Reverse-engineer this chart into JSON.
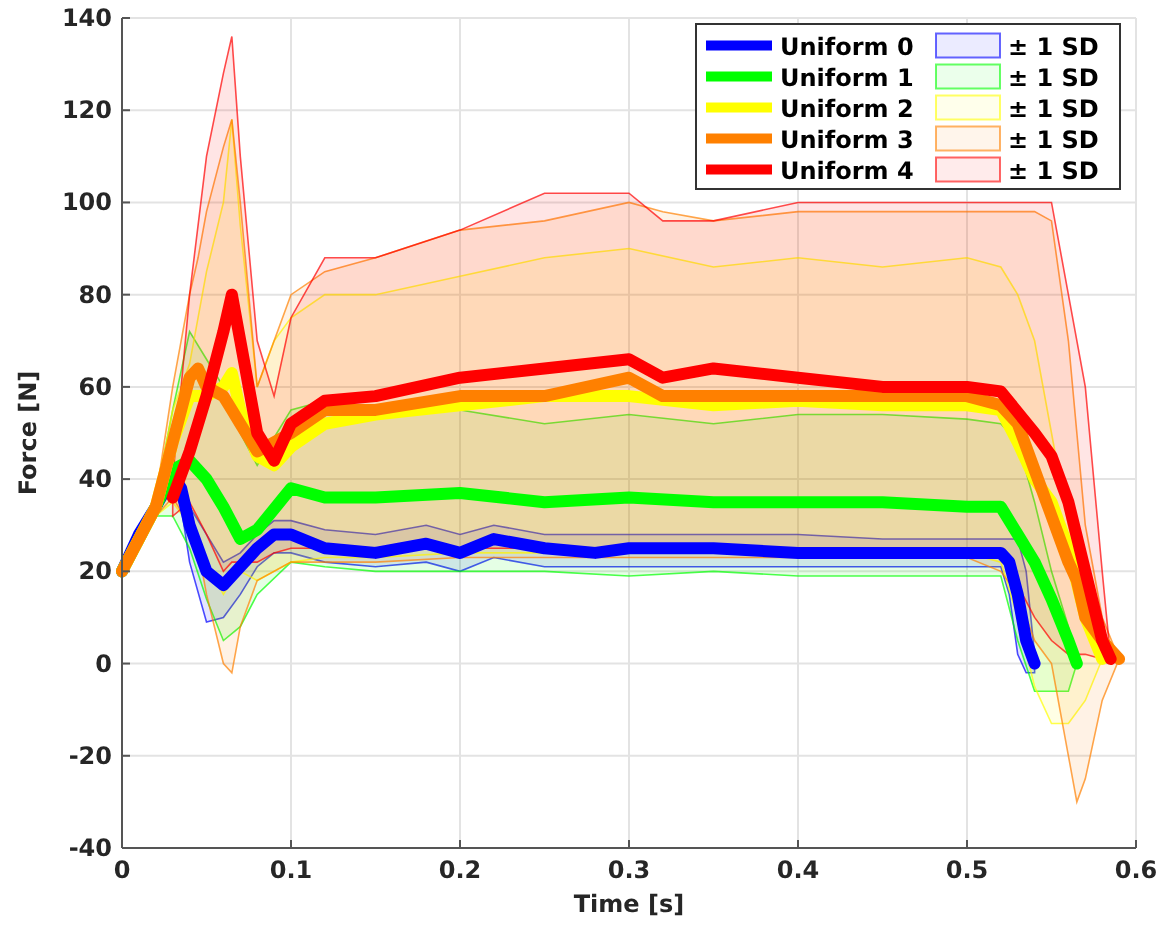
{
  "chart_data": {
    "type": "line",
    "xlabel": "Time [s]",
    "ylabel": "Force [N]",
    "xlim": [
      0,
      0.6
    ],
    "xticks": [
      0,
      0.1,
      0.2,
      0.3,
      0.4,
      0.5,
      0.6
    ],
    "ylim": [
      -40,
      140
    ],
    "yticks": [
      -40,
      -20,
      0,
      20,
      40,
      60,
      80,
      100,
      120,
      140
    ],
    "grid": true,
    "legend": "top right",
    "marker": "none",
    "line_style": "solid",
    "annotations": [
      "± 1 SD",
      "± 1 SD",
      "± 1 SD",
      "± 1 SD",
      "± 1 SD"
    ],
    "series": [
      {
        "name": "Uniform 0",
        "color": "#0000ff",
        "x": [
          0,
          0.01,
          0.02,
          0.03,
          0.035,
          0.04,
          0.05,
          0.06,
          0.07,
          0.08,
          0.09,
          0.1,
          0.12,
          0.15,
          0.18,
          0.2,
          0.22,
          0.25,
          0.28,
          0.3,
          0.35,
          0.4,
          0.45,
          0.5,
          0.52,
          0.525,
          0.53,
          0.535,
          0.54
        ],
        "values": [
          20,
          28,
          34,
          41,
          38,
          30,
          20,
          17,
          21,
          25,
          28,
          28,
          25,
          24,
          26,
          24,
          27,
          25,
          24,
          25,
          25,
          24,
          24,
          24,
          24,
          22,
          15,
          5,
          0
        ],
        "upper": [
          20,
          29,
          36,
          42,
          40,
          34,
          28,
          22,
          24,
          28,
          31,
          31,
          29,
          28,
          30,
          28,
          30,
          28,
          28,
          28,
          28,
          28,
          27,
          27,
          27,
          27,
          27,
          20,
          2
        ],
        "lower": [
          20,
          27,
          32,
          38,
          34,
          22,
          9,
          10,
          15,
          21,
          24,
          24,
          22,
          21,
          22,
          20,
          23,
          21,
          21,
          21,
          21,
          21,
          21,
          21,
          21,
          15,
          2,
          -2,
          -2
        ]
      },
      {
        "name": "Uniform 1",
        "color": "#00ff00",
        "x": [
          0,
          0.02,
          0.03,
          0.04,
          0.05,
          0.06,
          0.07,
          0.08,
          0.1,
          0.12,
          0.15,
          0.2,
          0.25,
          0.3,
          0.35,
          0.4,
          0.45,
          0.5,
          0.52,
          0.53,
          0.54,
          0.55,
          0.56,
          0.565
        ],
        "values": [
          20,
          34,
          42,
          44,
          40,
          34,
          27,
          29,
          38,
          36,
          36,
          37,
          35,
          36,
          35,
          35,
          35,
          34,
          34,
          28,
          22,
          14,
          5,
          0
        ],
        "upper": [
          20,
          36,
          55,
          72,
          66,
          60,
          50,
          43,
          55,
          57,
          54,
          55,
          52,
          54,
          52,
          54,
          54,
          53,
          52,
          48,
          35,
          20,
          8,
          0
        ],
        "lower": [
          20,
          32,
          32,
          25,
          14,
          5,
          8,
          15,
          22,
          21,
          20,
          20,
          20,
          19,
          20,
          19,
          19,
          19,
          19,
          5,
          -6,
          -6,
          -6,
          0
        ]
      },
      {
        "name": "Uniform 2",
        "color": "#ffff00",
        "x": [
          0,
          0.02,
          0.03,
          0.04,
          0.05,
          0.06,
          0.065,
          0.07,
          0.08,
          0.09,
          0.1,
          0.12,
          0.15,
          0.2,
          0.25,
          0.3,
          0.35,
          0.4,
          0.45,
          0.5,
          0.52,
          0.53,
          0.54,
          0.55,
          0.56,
          0.57,
          0.58
        ],
        "values": [
          20,
          34,
          48,
          58,
          58,
          60,
          63,
          55,
          45,
          43,
          47,
          52,
          54,
          56,
          58,
          58,
          56,
          57,
          56,
          56,
          55,
          48,
          40,
          35,
          25,
          10,
          1
        ],
        "upper": [
          20,
          36,
          55,
          65,
          85,
          100,
          118,
          95,
          60,
          70,
          75,
          80,
          80,
          84,
          88,
          90,
          86,
          88,
          86,
          88,
          86,
          80,
          70,
          50,
          30,
          15,
          1
        ],
        "lower": [
          20,
          32,
          35,
          30,
          22,
          15,
          18,
          20,
          18,
          20,
          22,
          23,
          23,
          24,
          24,
          24,
          24,
          24,
          24,
          24,
          22,
          10,
          -5,
          -13,
          -13,
          -8,
          1
        ]
      },
      {
        "name": "Uniform 3",
        "color": "#ff8000",
        "x": [
          0,
          0.02,
          0.03,
          0.04,
          0.045,
          0.05,
          0.06,
          0.065,
          0.07,
          0.08,
          0.1,
          0.12,
          0.15,
          0.2,
          0.25,
          0.3,
          0.32,
          0.35,
          0.4,
          0.45,
          0.5,
          0.52,
          0.53,
          0.54,
          0.55,
          0.56,
          0.565,
          0.57,
          0.58,
          0.59
        ],
        "values": [
          20,
          34,
          48,
          62,
          64,
          60,
          58,
          55,
          52,
          46,
          50,
          55,
          55,
          58,
          58,
          62,
          58,
          58,
          58,
          58,
          58,
          56,
          52,
          42,
          32,
          22,
          18,
          10,
          5,
          1
        ],
        "upper": [
          20,
          36,
          60,
          80,
          88,
          98,
          112,
          118,
          100,
          60,
          80,
          85,
          88,
          94,
          96,
          100,
          98,
          96,
          98,
          98,
          98,
          98,
          98,
          98,
          96,
          70,
          50,
          30,
          10,
          1
        ],
        "lower": [
          20,
          32,
          36,
          30,
          25,
          15,
          0,
          -2,
          8,
          18,
          22,
          22,
          22,
          23,
          23,
          23,
          23,
          23,
          23,
          23,
          23,
          20,
          15,
          5,
          0,
          -20,
          -30,
          -25,
          -8,
          1
        ]
      },
      {
        "name": "Uniform 4",
        "color": "#ff0000",
        "x": [
          0.03,
          0.04,
          0.05,
          0.06,
          0.065,
          0.07,
          0.08,
          0.09,
          0.1,
          0.12,
          0.15,
          0.2,
          0.25,
          0.3,
          0.32,
          0.35,
          0.4,
          0.45,
          0.5,
          0.52,
          0.54,
          0.55,
          0.56,
          0.57,
          0.58,
          0.585
        ],
        "values": [
          36,
          46,
          58,
          72,
          80,
          70,
          50,
          44,
          52,
          57,
          58,
          62,
          64,
          66,
          62,
          64,
          62,
          60,
          60,
          59,
          50,
          45,
          35,
          20,
          5,
          1
        ],
        "upper": [
          40,
          80,
          110,
          128,
          136,
          110,
          70,
          58,
          75,
          88,
          88,
          94,
          102,
          102,
          96,
          96,
          100,
          100,
          100,
          100,
          100,
          100,
          80,
          60,
          20,
          1
        ],
        "lower": [
          32,
          35,
          28,
          20,
          22,
          22,
          22,
          24,
          25,
          25,
          25,
          25,
          25,
          25,
          25,
          25,
          25,
          25,
          25,
          24,
          10,
          5,
          2,
          2,
          1,
          1
        ]
      }
    ]
  }
}
